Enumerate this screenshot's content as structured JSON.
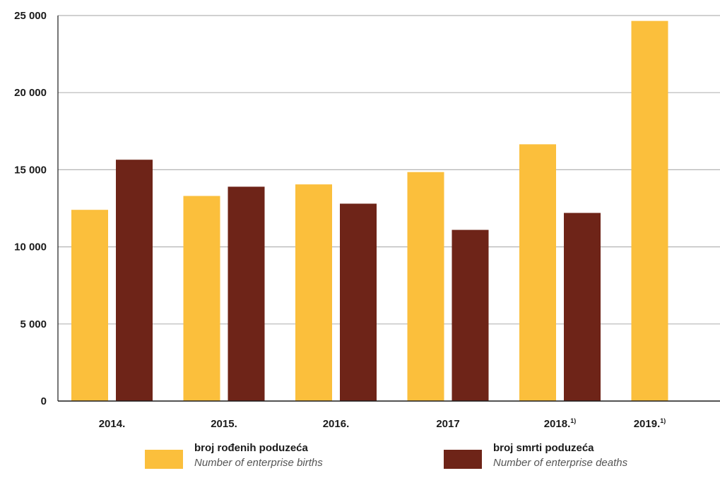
{
  "colors": {
    "births": "#FBBF3C",
    "deaths": "#6E2418",
    "grid": "#b5b5b5",
    "axis": "#1a1a1a"
  },
  "chart_data": {
    "type": "bar",
    "categories": [
      "2014.",
      "2015.",
      "2016.",
      "2017",
      "2018.",
      "2019."
    ],
    "category_notes": [
      "",
      "",
      "",
      "",
      "1)",
      "1)"
    ],
    "series": [
      {
        "name": "broj rođenih poduzeća",
        "name_en": "Number of enterprise births",
        "color": "#FBBF3C",
        "values": [
          12400,
          13300,
          14050,
          14850,
          16650,
          24650
        ]
      },
      {
        "name": "broj smrti poduzeća",
        "name_en": "Number of enterprise deaths",
        "color": "#6E2418",
        "values": [
          15650,
          13900,
          12800,
          11100,
          12200,
          null
        ]
      }
    ],
    "ylim": [
      0,
      25000
    ],
    "yticks": [
      0,
      5000,
      10000,
      15000,
      20000,
      25000
    ],
    "ytick_labels": [
      "0",
      "5 000",
      "10 000",
      "15 000",
      "20 000",
      "25 000"
    ],
    "grid": true,
    "legend_position": "bottom"
  },
  "legend": {
    "births_main": "broj rođenih poduzeća",
    "births_sub": "Number of enterprise births",
    "deaths_main": "broj smrti poduzeća",
    "deaths_sub": "Number of enterprise deaths"
  }
}
